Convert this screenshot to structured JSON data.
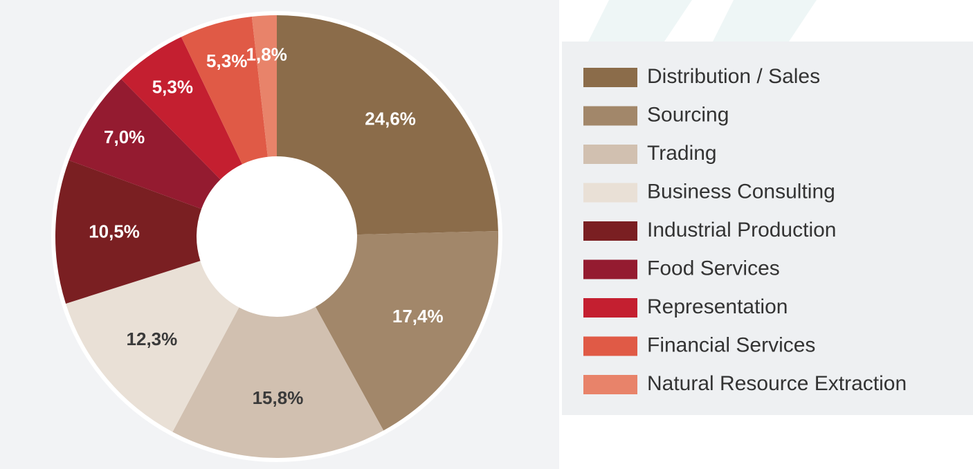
{
  "chart_data": {
    "type": "donut",
    "categories": [
      "Distribution / Sales",
      "Sourcing",
      "Trading",
      "Business Consulting",
      "Industrial Production",
      "Food Services",
      "Representation",
      "Financial Services",
      "Natural Resource Extraction"
    ],
    "values": [
      24.6,
      17.4,
      15.8,
      12.3,
      10.5,
      7.0,
      5.3,
      5.3,
      1.8
    ],
    "value_labels": [
      "24,6%",
      "17,4%",
      "15,8%",
      "12,3%",
      "10,5%",
      "7,0%",
      "5,3%",
      "5,3%",
      "1,8%"
    ],
    "colors": [
      "#8b6c4a",
      "#a2876a",
      "#d1c0b0",
      "#e9e0d6",
      "#7a1f22",
      "#941b30",
      "#c41f30",
      "#e05a46",
      "#e8836a"
    ],
    "legend": "right"
  }
}
